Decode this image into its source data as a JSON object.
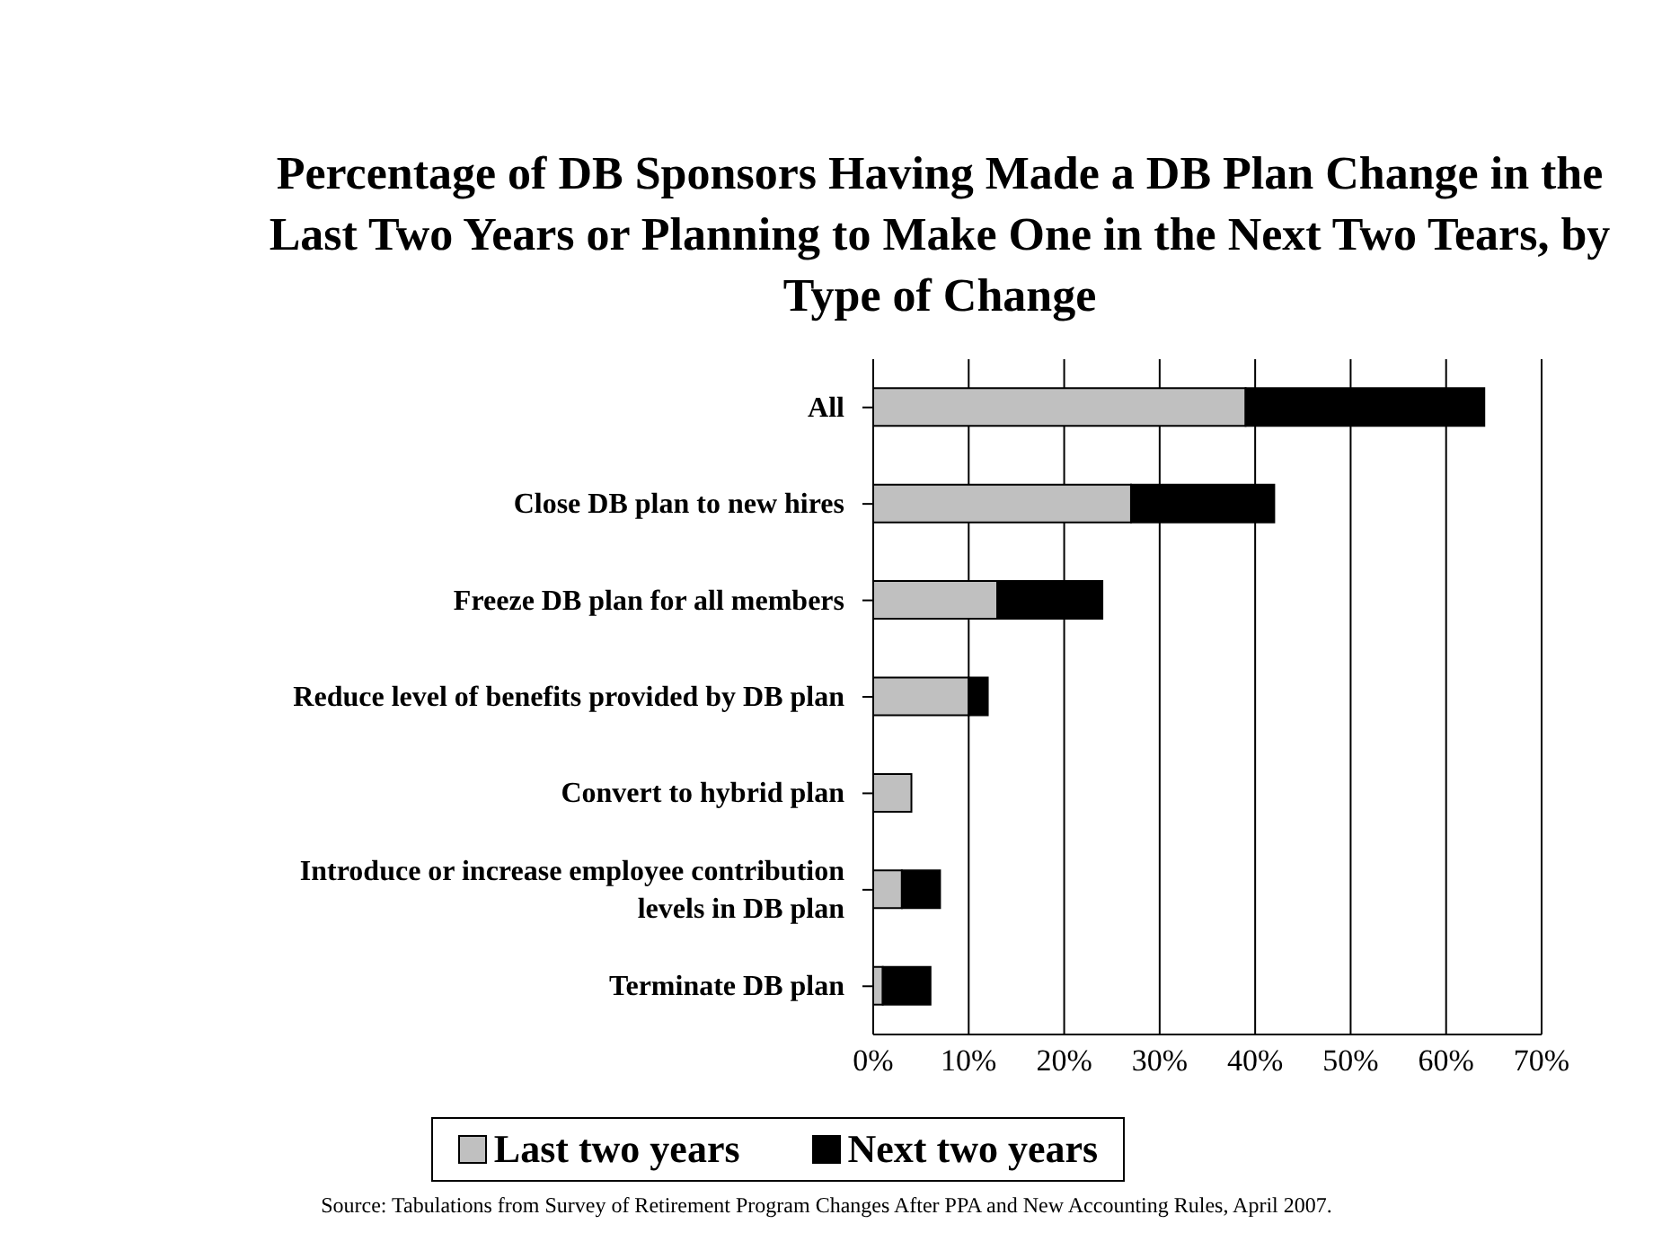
{
  "chart_data": {
    "type": "bar",
    "orientation": "horizontal",
    "stacked": true,
    "title": "Percentage of DB Sponsors Having Made a DB Plan Change in the Last Two Years or Planning to Make One in the Next Two Tears, by Type of Change",
    "categories": [
      "All",
      "Close DB plan to new hires",
      "Freeze DB plan for all members",
      "Reduce level of benefits provided by DB plan",
      "Convert to hybrid plan",
      "Introduce or increase employee contribution levels in DB plan",
      "Terminate DB plan"
    ],
    "series": [
      {
        "name": "Last two years",
        "color": "#c0c0c0",
        "values": [
          39,
          27,
          13,
          10,
          4,
          3,
          1
        ]
      },
      {
        "name": "Next two years",
        "color": "#000000",
        "values": [
          25,
          15,
          11,
          2,
          0,
          4,
          5
        ]
      }
    ],
    "xlim": [
      0,
      70
    ],
    "xticks": [
      {
        "value": 0,
        "label": "0%"
      },
      {
        "value": 10,
        "label": "10%"
      },
      {
        "value": 20,
        "label": "20%"
      },
      {
        "value": 30,
        "label": "30%"
      },
      {
        "value": 40,
        "label": "40%"
      },
      {
        "value": 50,
        "label": "50%"
      },
      {
        "value": 60,
        "label": "60%"
      },
      {
        "value": 70,
        "label": "70%"
      }
    ],
    "grid": "x",
    "legend": "bottom",
    "annotations": [
      "Source: Tabulations from Survey of Retirement Program Changes After PPA and New Accounting Rules, April 2007."
    ]
  }
}
